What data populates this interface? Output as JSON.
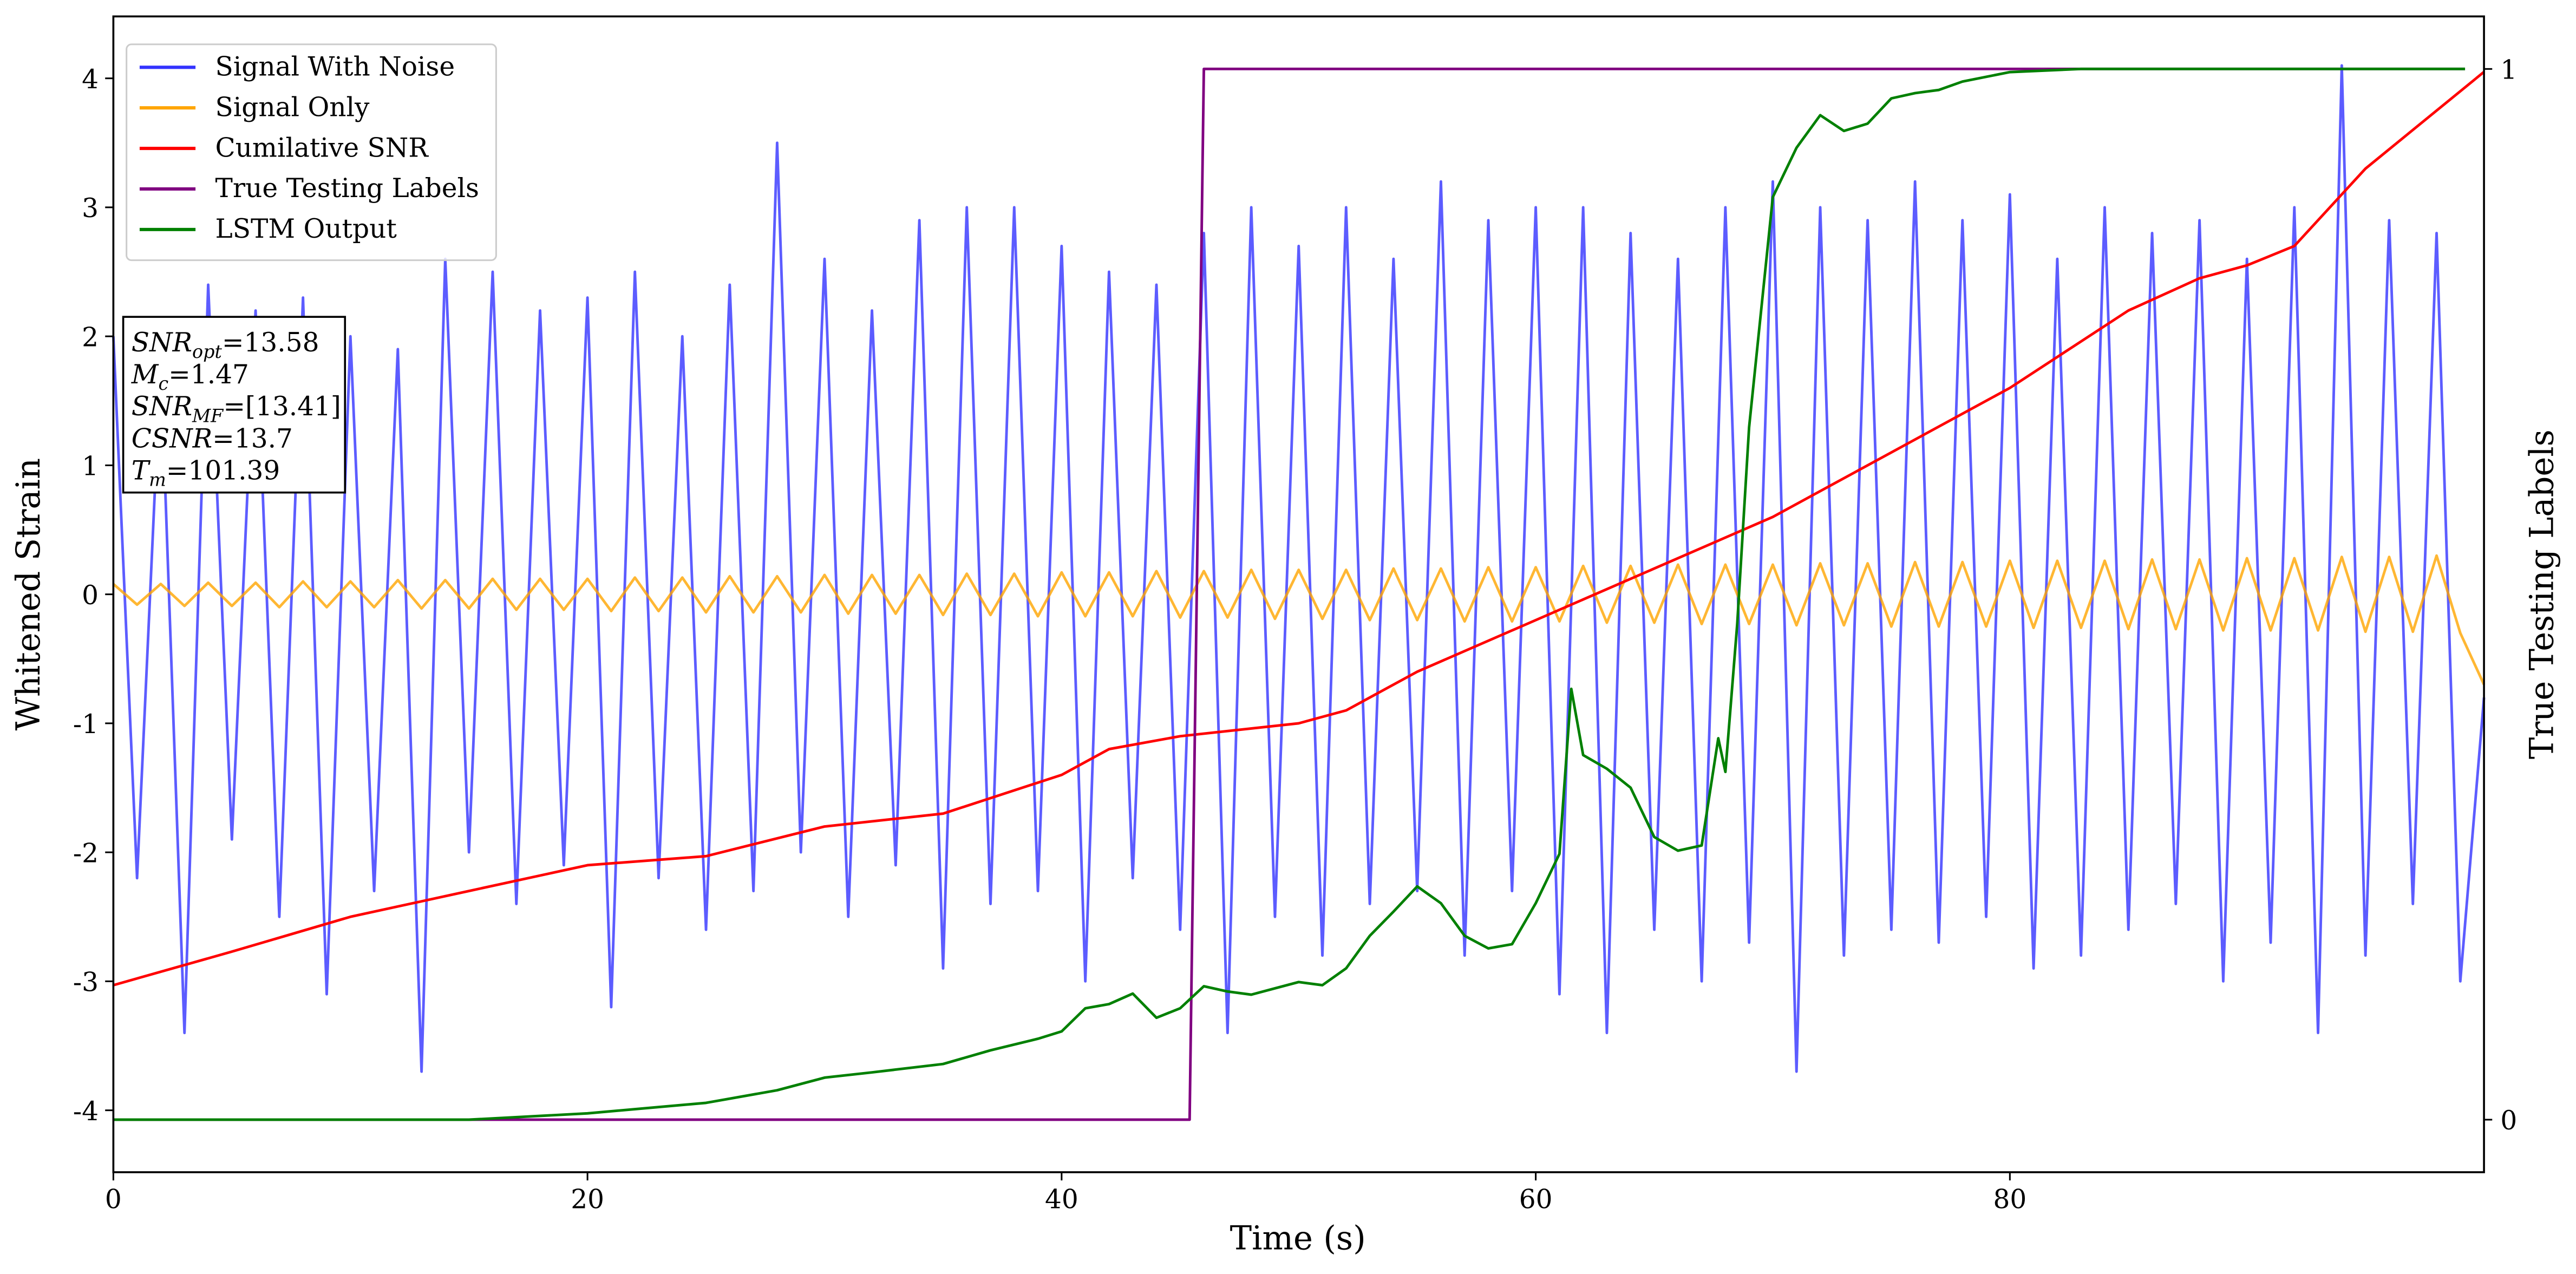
{
  "chart_data": {
    "type": "line",
    "xlabel": "Time (s)",
    "ylabel": "Whitened Strain",
    "y2label": "True Testing Labels",
    "xlim": [
      0,
      100
    ],
    "xticks": [
      0,
      20,
      40,
      60,
      80
    ],
    "ylim": [
      -4.48,
      4.48
    ],
    "yticks": [
      -4,
      -3,
      -2,
      -1,
      0,
      1,
      2,
      3,
      4
    ],
    "y2lim": [
      -0.05,
      1.05
    ],
    "y2ticks": [
      0,
      1
    ],
    "grid": false,
    "legend": "upper-left",
    "x": [
      0,
      1,
      2,
      3,
      4,
      5,
      6,
      7,
      8,
      9,
      10,
      11,
      12,
      13,
      14,
      15,
      16,
      17,
      18,
      19,
      20,
      21,
      22,
      23,
      24,
      25,
      26,
      27,
      28,
      29,
      30,
      31,
      32,
      33,
      34,
      35,
      36,
      37,
      38,
      39,
      40,
      41,
      42,
      43,
      44,
      45,
      46,
      47,
      48,
      49,
      50,
      51,
      52,
      53,
      54,
      55,
      56,
      57,
      58,
      59,
      60,
      61,
      62,
      63,
      64,
      65,
      66,
      67,
      68,
      69,
      70,
      71,
      72,
      73,
      74,
      75,
      76,
      77,
      78,
      79,
      80,
      81,
      82,
      83,
      84,
      85,
      86,
      87,
      88,
      89,
      90,
      91,
      92,
      93,
      94,
      95,
      96,
      97,
      98,
      99,
      100
    ],
    "series": [
      {
        "name": "Signal With Noise",
        "color": "#3333ff",
        "values": [
          2.0,
          -2.2,
          1.8,
          -3.4,
          2.4,
          -1.9,
          2.2,
          -2.5,
          2.3,
          -3.1,
          2.0,
          -2.3,
          1.9,
          -3.7,
          2.6,
          -2.0,
          2.5,
          -2.4,
          2.2,
          -2.1,
          2.3,
          -3.2,
          2.5,
          -2.2,
          2.0,
          -2.6,
          2.4,
          -2.3,
          3.5,
          -2.0,
          2.6,
          -2.5,
          2.2,
          -2.1,
          2.9,
          -2.9,
          3.0,
          -2.4,
          3.0,
          -2.3,
          2.7,
          -3.0,
          2.5,
          -2.2,
          2.4,
          -2.6,
          2.8,
          -3.4,
          3.0,
          -2.5,
          2.7,
          -2.8,
          3.0,
          -2.4,
          2.6,
          -2.3,
          3.2,
          -2.8,
          2.9,
          -2.3,
          3.0,
          -3.1,
          3.0,
          -3.4,
          2.8,
          -2.6,
          2.6,
          -3.0,
          3.0,
          -2.7,
          3.2,
          -3.7,
          3.0,
          -2.8,
          2.9,
          -2.6,
          3.2,
          -2.7,
          2.9,
          -2.5,
          3.1,
          -2.9,
          2.6,
          -2.8,
          3.0,
          -2.6,
          2.8,
          -2.4,
          2.9,
          -3.0,
          2.6,
          -2.7,
          3.0,
          -3.4,
          4.1,
          -2.8,
          2.9,
          -2.4,
          2.8,
          -3.0,
          -0.8
        ]
      },
      {
        "name": "Signal Only",
        "color": "orange",
        "values": [
          0.08,
          -0.08,
          0.08,
          -0.09,
          0.09,
          -0.09,
          0.09,
          -0.1,
          0.1,
          -0.1,
          0.1,
          -0.1,
          0.11,
          -0.11,
          0.11,
          -0.11,
          0.12,
          -0.12,
          0.12,
          -0.12,
          0.12,
          -0.13,
          0.13,
          -0.13,
          0.13,
          -0.14,
          0.14,
          -0.14,
          0.14,
          -0.14,
          0.15,
          -0.15,
          0.15,
          -0.15,
          0.15,
          -0.16,
          0.16,
          -0.16,
          0.16,
          -0.17,
          0.17,
          -0.17,
          0.17,
          -0.17,
          0.18,
          -0.18,
          0.18,
          -0.18,
          0.19,
          -0.19,
          0.19,
          -0.19,
          0.19,
          -0.2,
          0.2,
          -0.2,
          0.2,
          -0.21,
          0.21,
          -0.21,
          0.21,
          -0.21,
          0.22,
          -0.22,
          0.22,
          -0.22,
          0.23,
          -0.23,
          0.23,
          -0.23,
          0.23,
          -0.24,
          0.24,
          -0.24,
          0.24,
          -0.25,
          0.25,
          -0.25,
          0.25,
          -0.25,
          0.26,
          -0.26,
          0.26,
          -0.26,
          0.26,
          -0.27,
          0.27,
          -0.27,
          0.27,
          -0.28,
          0.28,
          -0.28,
          0.28,
          -0.28,
          0.29,
          -0.29,
          0.29,
          -0.29,
          0.3,
          -0.3,
          -0.7
        ]
      },
      {
        "name": "Cumilative SNR",
        "color": "red",
        "x": [
          0,
          5,
          10,
          15,
          20,
          25,
          30,
          35,
          40,
          42,
          45,
          50,
          52,
          55,
          60,
          65,
          70,
          75,
          80,
          85,
          88,
          90,
          92,
          95,
          100
        ],
        "values": [
          -3.03,
          -2.77,
          -2.5,
          -2.3,
          -2.1,
          -2.03,
          -1.8,
          -1.7,
          -1.4,
          -1.2,
          -1.1,
          -1.0,
          -0.9,
          -0.6,
          -0.2,
          0.2,
          0.6,
          1.1,
          1.6,
          2.2,
          2.45,
          2.55,
          2.7,
          3.3,
          4.05
        ]
      },
      {
        "name": "True Testing Labels",
        "color": "purple",
        "axis": "y2",
        "x": [
          0,
          45.4,
          46,
          99.2
        ],
        "values": [
          0,
          0,
          1,
          1
        ]
      },
      {
        "name": "LSTM Output",
        "color": "green",
        "axis": "y2",
        "x": [
          0,
          15,
          20,
          25,
          28,
          30,
          32,
          35,
          37,
          39,
          40,
          41,
          42,
          43,
          44,
          45,
          46,
          47,
          48,
          49,
          50,
          51,
          52,
          53,
          54,
          55,
          56,
          57,
          58,
          59,
          60,
          61,
          61.5,
          62,
          63,
          64,
          65,
          66,
          67,
          67.7,
          68,
          68.5,
          69,
          70,
          71,
          72,
          73,
          74,
          75,
          76,
          77,
          78,
          80,
          83,
          99.2
        ],
        "values": [
          0,
          0,
          0.006,
          0.016,
          0.028,
          0.04,
          0.045,
          0.053,
          0.066,
          0.077,
          0.084,
          0.106,
          0.11,
          0.12,
          0.097,
          0.106,
          0.127,
          0.122,
          0.119,
          0.125,
          0.131,
          0.128,
          0.144,
          0.175,
          0.198,
          0.222,
          0.206,
          0.175,
          0.163,
          0.167,
          0.206,
          0.253,
          0.41,
          0.347,
          0.334,
          0.316,
          0.269,
          0.256,
          0.261,
          0.363,
          0.331,
          0.472,
          0.659,
          0.878,
          0.925,
          0.956,
          0.941,
          0.948,
          0.972,
          0.977,
          0.98,
          0.988,
          0.997,
          1,
          1
        ]
      }
    ],
    "annotations": [
      {
        "main": "SNR",
        "sub": "opt",
        "text": "=13.58"
      },
      {
        "main": "M",
        "sub": "c",
        "text": "=1.47"
      },
      {
        "main": "SNR",
        "sub": "MF",
        "text": "=[13.41]"
      },
      {
        "main": "CSNR",
        "text": "=13.7"
      },
      {
        "main": "T",
        "sub": "m",
        "text": "=101.39"
      }
    ]
  }
}
